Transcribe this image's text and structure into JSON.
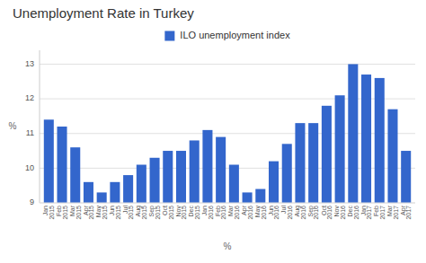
{
  "chart_data": {
    "type": "bar",
    "title": "Unemployment Rate in Turkey",
    "xlabel": "%",
    "ylabel": "%",
    "categories": [
      "Jan\n2015",
      "Feb\n2015",
      "Mar\n2015",
      "Apr\n2015",
      "May\n2015",
      "Jun\n2015",
      "Jul\n2015",
      "Aug\n2015",
      "Sep\n2015",
      "Oct\n2015",
      "Nov\n2015",
      "Dec\n2015",
      "Jan\n2016",
      "Feb\n2016",
      "Mar\n2016",
      "Apr\n2016",
      "May\n2016",
      "Jun\n2016",
      "Jul\n2016",
      "Aug\n2016",
      "Sep\n2016",
      "Oct\n2016",
      "Nov\n2016",
      "Dec\n2016",
      "Jan\n2017",
      "Feb\n2017",
      "Mar\n2017",
      "Apr\n2017"
    ],
    "series": [
      {
        "name": "ILO unemployment index",
        "color": "#3366cc",
        "values": [
          11.4,
          11.2,
          10.6,
          9.6,
          9.3,
          9.6,
          9.8,
          10.1,
          10.3,
          10.5,
          10.5,
          10.8,
          11.1,
          10.9,
          10.1,
          9.3,
          9.4,
          10.2,
          10.7,
          11.3,
          11.3,
          11.8,
          12.1,
          13.0,
          12.7,
          12.6,
          11.7,
          10.5
        ]
      }
    ],
    "ylim": [
      9,
      13.4
    ],
    "yticks": [
      9,
      10,
      11,
      12,
      13
    ],
    "grid": true,
    "legend": "top"
  }
}
